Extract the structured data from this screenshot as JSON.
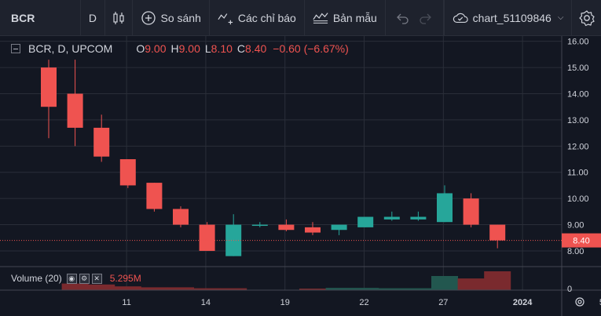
{
  "toolbar": {
    "symbol": "BCR",
    "interval": "D",
    "compare_label": "So sánh",
    "indicators_label": "Các chỉ báo",
    "templates_label": "Bản mẫu",
    "chart_name": "chart_51109846"
  },
  "legend": {
    "symbol": "BCR, D, UPCOM",
    "open_label": "O",
    "open": "9.00",
    "high_label": "H",
    "high": "9.00",
    "low_label": "L",
    "low": "8.10",
    "close_label": "C",
    "close": "8.40",
    "change": "−0.60 (−6.67%)"
  },
  "volume_legend": {
    "label": "Volume (20)",
    "value": "5.295M"
  },
  "price_axis": {
    "ticks": [
      "16.00",
      "15.00",
      "14.00",
      "13.00",
      "12.00",
      "11.00",
      "10.00",
      "9.00",
      "8.00"
    ],
    "current_price": "8.40",
    "volume_zero": "0"
  },
  "time_axis": {
    "ticks": [
      {
        "label": "11",
        "bar": 2
      },
      {
        "label": "14",
        "bar": 5
      },
      {
        "label": "19",
        "bar": 8
      },
      {
        "label": "22",
        "bar": 11
      },
      {
        "label": "27",
        "bar": 14
      },
      {
        "label": "2024",
        "bar": 17
      },
      {
        "label": "5",
        "bar": 20
      }
    ]
  },
  "colors": {
    "up": "#26a69a",
    "down": "#ef5350",
    "vol_up": "#22574f",
    "vol_down": "#7a2a2e",
    "grid": "#2a2e39",
    "price_line": "#ef5350",
    "background": "#131722"
  },
  "chart_data": {
    "type": "candlestick",
    "ylim": [
      7.4,
      16.2
    ],
    "candles": [
      {
        "o": 15.0,
        "h": 15.3,
        "l": 12.3,
        "c": 13.5
      },
      {
        "o": 14.0,
        "h": 15.3,
        "l": 12.0,
        "c": 12.7
      },
      {
        "o": 12.7,
        "h": 13.2,
        "l": 11.4,
        "c": 11.6
      },
      {
        "o": 11.5,
        "h": 11.5,
        "l": 10.4,
        "c": 10.5
      },
      {
        "o": 10.6,
        "h": 10.6,
        "l": 9.5,
        "c": 9.6
      },
      {
        "o": 9.6,
        "h": 9.7,
        "l": 8.9,
        "c": 9.0
      },
      {
        "o": 9.0,
        "h": 9.1,
        "l": 8.0,
        "c": 8.0
      },
      {
        "o": 7.8,
        "h": 9.4,
        "l": 7.8,
        "c": 9.0
      },
      {
        "o": 9.0,
        "h": 9.1,
        "l": 8.9,
        "c": 9.0
      },
      {
        "o": 9.0,
        "h": 9.2,
        "l": 8.75,
        "c": 8.8
      },
      {
        "o": 8.9,
        "h": 9.1,
        "l": 8.6,
        "c": 8.7
      },
      {
        "o": 8.8,
        "h": 9.0,
        "l": 8.6,
        "c": 9.0
      },
      {
        "o": 8.9,
        "h": 9.3,
        "l": 8.9,
        "c": 9.3
      },
      {
        "o": 9.2,
        "h": 9.5,
        "l": 9.15,
        "c": 9.3
      },
      {
        "o": 9.2,
        "h": 9.5,
        "l": 9.15,
        "c": 9.3
      },
      {
        "o": 9.1,
        "h": 10.5,
        "l": 9.1,
        "c": 10.2
      },
      {
        "o": 10.0,
        "h": 10.2,
        "l": 8.9,
        "c": 9.0
      },
      {
        "o": 9.0,
        "h": 9.0,
        "l": 8.1,
        "c": 8.4
      }
    ],
    "volume": [
      0,
      0.35,
      0.3,
      0.2,
      0.15,
      0.15,
      0.1,
      0.1,
      0,
      0,
      0.08,
      0.12,
      0.12,
      0.1,
      0.1,
      0.75,
      0.62,
      1.0
    ],
    "volume_up": [
      false,
      false,
      false,
      false,
      false,
      false,
      false,
      false,
      true,
      false,
      false,
      true,
      true,
      true,
      true,
      true,
      false,
      false
    ]
  }
}
